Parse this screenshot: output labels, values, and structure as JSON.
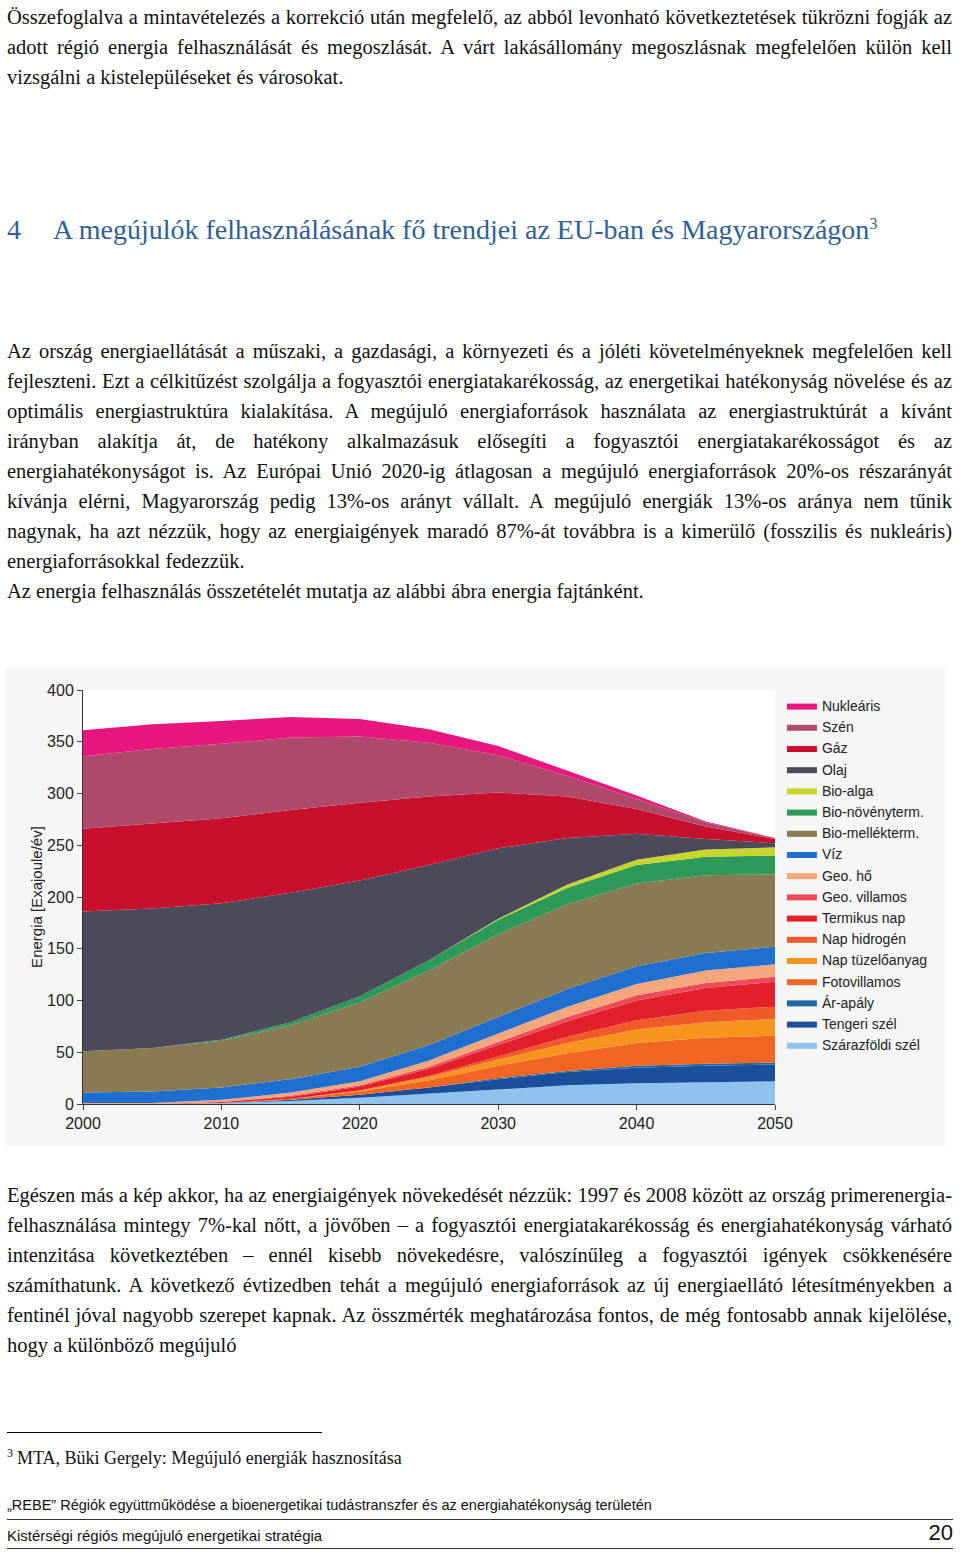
{
  "document": {
    "intro": "Összefoglalva a mintavételezés a korrekció után megfelelő, az abból levonható következtetések tükrözni fogják az adott régió energia felhasználását és megoszlását. A várt lakásállomány megoszlásnak megfelelően külön kell vizsgálni a kistelepüléseket és városokat.",
    "heading": {
      "number": "4",
      "text": "A megújulók felhasználásának fő trendjei az EU-ban és Magyarországon",
      "footnote_ref": "3"
    },
    "paragraphs": [
      "Az ország energiaellátását a műszaki, a gazdasági, a környezeti és a jóléti követelményeknek megfelelően kell fejleszteni. Ezt a célkitűzést szolgálja a fogyasztói energiatakarékosság, az energetikai hatékonyság növelése és az optimális energiastruktúra kialakítása. A megújuló energiaforrások használata az energiastruktúrát a kívánt irányban alakítja át, de hatékony alkalmazásuk elősegíti a fogyasztói energiatakarékosságot és az energiahatékonyságot is. Az Európai Unió 2020-ig átlagosan a megújuló energiaforrások 20%-os részarányát kívánja elérni, Magyarország pedig 13%-os arányt vállalt. A megújuló energiák 13%-os aránya nem tűnik nagynak, ha azt nézzük, hogy az energiaigények maradó 87%-át továbbra is a kimerülő (fosszilis és nukleáris) energiaforrásokkal fedezzük.",
      "Az energia felhasználás összetételét mutatja az alábbi ábra energia fajtánként."
    ],
    "after_chart": "Egészen más a kép akkor, ha az energiaigények növekedését nézzük: 1997 és 2008 között az ország primerenergia-felhasználása mintegy 7%-kal nőtt, a jövőben – a fogyasztói energiatakarékosság és energiahatékonyság várható intenzitása következtében – ennél kisebb növekedésre, valószínűleg a fogyasztói igények csökkenésére számíthatunk. A következő évtizedben tehát a megújuló energiaforrások az új energiaellátó létesítményekben a fentinél jóval nagyobb szerepet kapnak. Az összmérték meghatározása fontos, de még fontosabb annak kijelölése, hogy a különböző megújuló",
    "footnote": {
      "mark": "3",
      "text": "MTA, Büki Gergely: Megújuló energiák hasznosítása"
    },
    "footer": {
      "project": "„REBE” Régiók együttműködése a bioenergetikai tudástranszfer és az energiahatékonyság területén",
      "title": "Kistérségi régiós megújuló energetikai stratégia",
      "page": "20"
    }
  },
  "chart_data": {
    "type": "area",
    "stacked": true,
    "grid": false,
    "legend": "right",
    "y_label": "Energia [Exajoule/év]",
    "x": [
      2000,
      2005,
      2010,
      2015,
      2020,
      2025,
      2030,
      2035,
      2040,
      2045,
      2050
    ],
    "xlim": [
      2000,
      2050
    ],
    "xticks": [
      2000,
      2010,
      2020,
      2030,
      2040,
      2050
    ],
    "ylim": [
      0,
      400
    ],
    "yticks": [
      0,
      50,
      100,
      150,
      200,
      250,
      300,
      350,
      400
    ],
    "series": [
      {
        "name": "Szárazföldi szél",
        "color": "#8fc3ee",
        "values": [
          0,
          0,
          1,
          3,
          6,
          10,
          14,
          18,
          20,
          21,
          22
        ]
      },
      {
        "name": "Tengeri szél",
        "color": "#1b4f9c",
        "values": [
          0,
          0,
          0,
          1,
          3,
          6,
          10,
          13,
          15,
          16,
          16
        ]
      },
      {
        "name": "Ár-apály",
        "color": "#1e6aa0",
        "values": [
          0,
          0,
          0,
          0,
          0,
          0,
          1,
          1,
          2,
          2,
          2
        ]
      },
      {
        "name": "Fotovillamos",
        "color": "#f26522",
        "values": [
          0,
          0,
          0,
          1,
          3,
          7,
          12,
          17,
          22,
          25,
          26
        ]
      },
      {
        "name": "Nap tüzelőanyag",
        "color": "#f7941d",
        "values": [
          0,
          0,
          0,
          0,
          1,
          3,
          6,
          10,
          13,
          15,
          16
        ]
      },
      {
        "name": "Nap hidrogén",
        "color": "#f05a28",
        "values": [
          0,
          0,
          0,
          0,
          0,
          1,
          3,
          6,
          9,
          11,
          12
        ]
      },
      {
        "name": "Termikus nap",
        "color": "#e3202a",
        "values": [
          0,
          0,
          1,
          2,
          4,
          7,
          11,
          15,
          19,
          22,
          24
        ]
      },
      {
        "name": "Geo. villamos",
        "color": "#ee4a5a",
        "values": [
          0,
          0,
          0,
          1,
          1,
          2,
          3,
          4,
          5,
          5,
          5
        ]
      },
      {
        "name": "Geo. hő",
        "color": "#f4a77a",
        "values": [
          1,
          1,
          2,
          3,
          4,
          6,
          8,
          10,
          11,
          12,
          12
        ]
      },
      {
        "name": "Víz",
        "color": "#1f6fd0",
        "values": [
          10,
          11,
          12,
          13,
          14,
          15,
          16,
          17,
          17,
          17,
          17
        ]
      },
      {
        "name": "Bio-mellékterm.",
        "color": "#8a7a52",
        "values": [
          40,
          42,
          45,
          52,
          62,
          72,
          80,
          82,
          80,
          75,
          70
        ]
      },
      {
        "name": "Bio-növényterm.",
        "color": "#2e9a5a",
        "values": [
          0,
          0,
          1,
          3,
          6,
          10,
          14,
          16,
          18,
          18,
          18
        ]
      },
      {
        "name": "Bio-alga",
        "color": "#c8d62b",
        "values": [
          0,
          0,
          0,
          0,
          0,
          0,
          1,
          3,
          5,
          7,
          8
        ]
      },
      {
        "name": "Olaj",
        "color": "#4a4a5a",
        "values": [
          135,
          135,
          132,
          125,
          112,
          92,
          68,
          45,
          25,
          10,
          4
        ]
      },
      {
        "name": "Gáz",
        "color": "#c8102e",
        "values": [
          80,
          82,
          82,
          80,
          75,
          66,
          54,
          40,
          24,
          12,
          4
        ]
      },
      {
        "name": "Szén",
        "color": "#b04a6a",
        "values": [
          70,
          72,
          72,
          70,
          64,
          52,
          36,
          20,
          10,
          4,
          1
        ]
      },
      {
        "name": "Nukleáris",
        "color": "#e8177f",
        "values": [
          25,
          24,
          22,
          20,
          17,
          13,
          9,
          5,
          3,
          1,
          0
        ]
      }
    ]
  }
}
